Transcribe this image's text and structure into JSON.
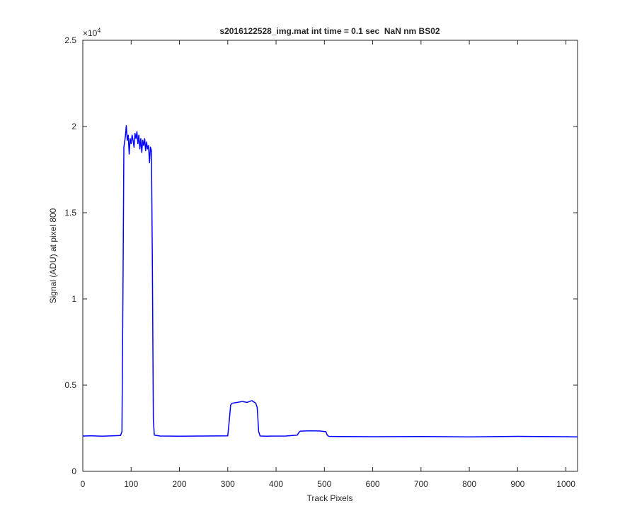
{
  "chart_data": {
    "type": "line",
    "title": "s2016122528_img.mat int time = 0.1 sec  NaN nm BS02",
    "x_label": "Track Pixels",
    "y_label": "Signal (ADU) at pixel 800",
    "y_multiplier": {
      "base": "×10",
      "exponent": "4"
    },
    "x": [
      0,
      20,
      40,
      60,
      78,
      81,
      83,
      85,
      86,
      88,
      90,
      92,
      94,
      96,
      98,
      100,
      102,
      104,
      106,
      108,
      110,
      112,
      114,
      116,
      118,
      120,
      122,
      124,
      126,
      128,
      130,
      132,
      134,
      136,
      138,
      140,
      142,
      144,
      146,
      148,
      160,
      200,
      250,
      300,
      303,
      306,
      309,
      320,
      330,
      340,
      350,
      358,
      361,
      364,
      367,
      380,
      420,
      444,
      447,
      450,
      470,
      490,
      503,
      506,
      509,
      530,
      600,
      700,
      800,
      900,
      1000,
      1024
    ],
    "series": [
      {
        "color": "#0000ff",
        "values": [
          2050,
          2060,
          2040,
          2060,
          2080,
          2300,
          10000,
          18800,
          19000,
          19400,
          20050,
          19200,
          19500,
          18400,
          19300,
          19000,
          19500,
          19200,
          18800,
          19600,
          19300,
          19700,
          19000,
          19500,
          18700,
          19300,
          18500,
          19200,
          18900,
          19300,
          18600,
          19100,
          18700,
          18900,
          17900,
          18800,
          18600,
          12000,
          3000,
          2100,
          2050,
          2040,
          2050,
          2060,
          2900,
          3850,
          3950,
          4000,
          4050,
          4000,
          4100,
          3950,
          3700,
          2300,
          2050,
          2040,
          2050,
          2100,
          2250,
          2330,
          2350,
          2340,
          2300,
          2100,
          2030,
          2020,
          2010,
          2020,
          2000,
          2030,
          2010,
          2000
        ]
      }
    ],
    "xlim": [
      0,
      1024
    ],
    "xticks": [
      0,
      100,
      200,
      300,
      400,
      500,
      600,
      700,
      800,
      900,
      1000
    ],
    "ylim": [
      0,
      25000
    ],
    "yticks": [
      {
        "value": 0,
        "label": "0"
      },
      {
        "value": 5000,
        "label": "0.5"
      },
      {
        "value": 10000,
        "label": "1"
      },
      {
        "value": 15000,
        "label": "1.5"
      },
      {
        "value": 20000,
        "label": "2"
      },
      {
        "value": 25000,
        "label": "2.5"
      }
    ],
    "grid": false
  }
}
